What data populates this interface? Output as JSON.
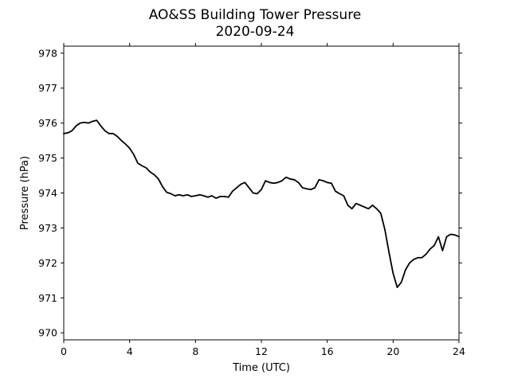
{
  "chart_data": {
    "type": "line",
    "title": "AO&SS Building Tower Pressure",
    "subtitle": "2020-09-24",
    "xlabel": "Time (UTC)",
    "ylabel": "Pressure (hPa)",
    "xlim": [
      0,
      24
    ],
    "ylim": [
      969.8,
      978.2
    ],
    "x_ticks": [
      0,
      4,
      8,
      12,
      16,
      20,
      24
    ],
    "y_ticks": [
      970,
      971,
      972,
      973,
      974,
      975,
      976,
      977,
      978
    ],
    "grid": false,
    "legend": "none",
    "line_color": "#000000",
    "series": [
      {
        "x": [
          0,
          0.25,
          0.5,
          0.75,
          1.0,
          1.25,
          1.5,
          1.75,
          2.0,
          2.25,
          2.5,
          2.75,
          3.0,
          3.25,
          3.5,
          3.75,
          4.0,
          4.25,
          4.5,
          4.75,
          5.0,
          5.25,
          5.5,
          5.75,
          6.0,
          6.25,
          6.5,
          6.75,
          7.0,
          7.25,
          7.5,
          7.75,
          8.0,
          8.25,
          8.5,
          8.75,
          9.0,
          9.25,
          9.5,
          9.75,
          10.0,
          10.25,
          10.5,
          10.75,
          11.0,
          11.25,
          11.5,
          11.75,
          12.0,
          12.25,
          12.5,
          12.75,
          13.0,
          13.25,
          13.5,
          13.75,
          14.0,
          14.25,
          14.5,
          14.75,
          15.0,
          15.25,
          15.5,
          15.75,
          16.0,
          16.25,
          16.5,
          16.75,
          17.0,
          17.25,
          17.5,
          17.75,
          18.0,
          18.25,
          18.5,
          18.75,
          19.0,
          19.25,
          19.5,
          19.75,
          20.0,
          20.25,
          20.5,
          20.75,
          21.0,
          21.25,
          21.5,
          21.75,
          22.0,
          22.25,
          22.5,
          22.75,
          23.0,
          23.25,
          23.5,
          23.75,
          24.0
        ],
        "y": [
          975.7,
          975.72,
          975.78,
          975.92,
          976.0,
          976.02,
          976.0,
          976.05,
          976.08,
          975.92,
          975.78,
          975.7,
          975.7,
          975.62,
          975.5,
          975.4,
          975.28,
          975.1,
          974.85,
          974.78,
          974.72,
          974.6,
          974.52,
          974.4,
          974.18,
          974.02,
          973.98,
          973.92,
          973.95,
          973.92,
          973.95,
          973.9,
          973.92,
          973.95,
          973.92,
          973.88,
          973.92,
          973.85,
          973.9,
          973.9,
          973.88,
          974.05,
          974.15,
          974.25,
          974.3,
          974.15,
          974.0,
          973.98,
          974.1,
          974.35,
          974.3,
          974.28,
          974.3,
          974.35,
          974.45,
          974.4,
          974.38,
          974.3,
          974.15,
          974.12,
          974.1,
          974.15,
          974.38,
          974.35,
          974.3,
          974.28,
          974.05,
          973.98,
          973.92,
          973.65,
          973.55,
          973.7,
          973.65,
          973.6,
          973.55,
          973.65,
          973.55,
          973.42,
          972.95,
          972.3,
          971.7,
          971.3,
          971.45,
          971.8,
          972.0,
          972.1,
          972.15,
          972.15,
          972.25,
          972.4,
          972.5,
          972.75,
          972.35,
          972.75,
          972.82,
          972.8,
          972.75
        ]
      }
    ]
  }
}
